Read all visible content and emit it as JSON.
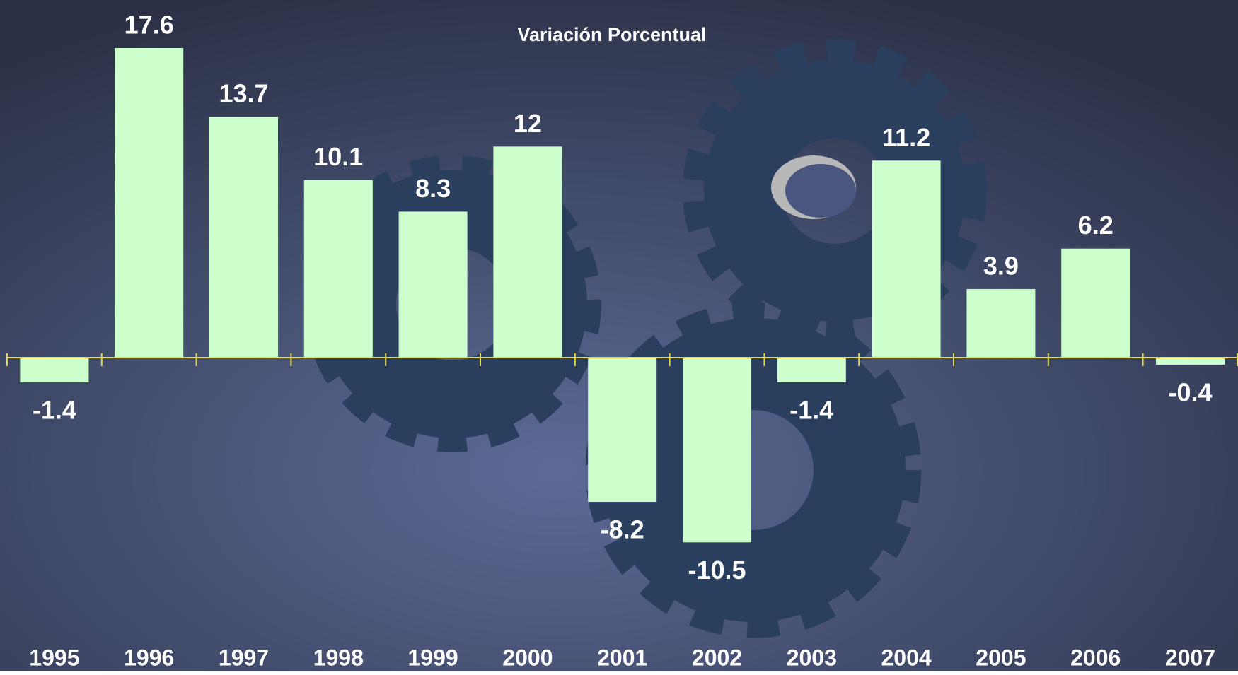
{
  "chart_data": {
    "type": "bar",
    "title": "Variación Porcentual",
    "categories": [
      "1995",
      "1996",
      "1997",
      "1998",
      "1999",
      "2000",
      "2001",
      "2002",
      "2003",
      "2004",
      "2005",
      "2006",
      "2007"
    ],
    "values": [
      -1.4,
      17.6,
      13.7,
      10.1,
      8.3,
      12,
      -8.2,
      -10.5,
      -1.4,
      11.2,
      3.9,
      6.2,
      -0.4
    ],
    "color": "#ccffcc"
  }
}
